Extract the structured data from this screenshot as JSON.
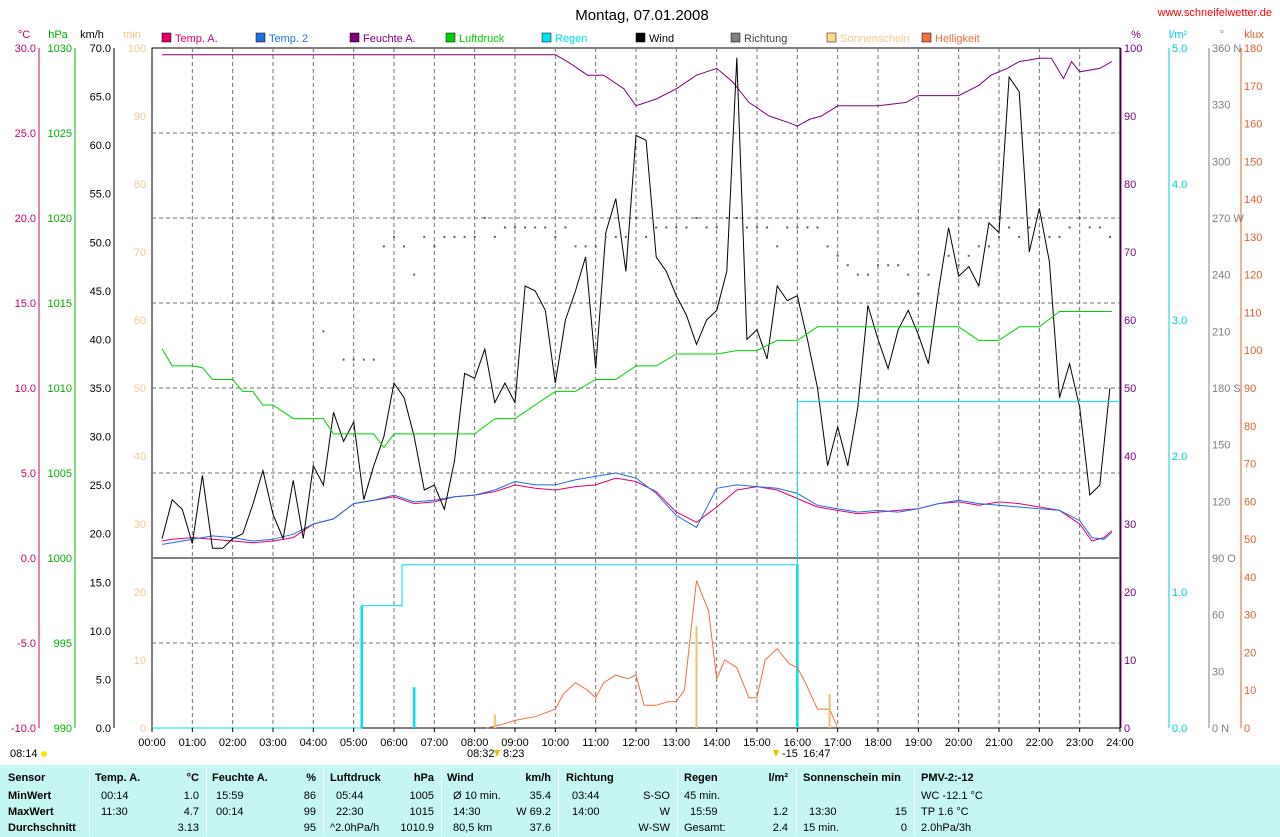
{
  "header": {
    "title": "Montag, 07.01.2008",
    "site": "www.schneifelwetter.de"
  },
  "legend": [
    {
      "label": "Temp. A.",
      "color": "#e0006a"
    },
    {
      "label": "Temp. 2",
      "color": "#1f6fe0"
    },
    {
      "label": "Feuchte A.",
      "color": "#7f0080"
    },
    {
      "label": "Luftdruck",
      "color": "#00d000"
    },
    {
      "label": "Regen",
      "color": "#00e0f0"
    },
    {
      "label": "Wind",
      "color": "#000000"
    },
    {
      "label": "Richtung",
      "color": "#808080"
    },
    {
      "label": "Sonnenschein",
      "color": "#ffd890"
    },
    {
      "label": "Helligkeit",
      "color": "#f07040"
    }
  ],
  "axes": {
    "left": [
      {
        "unit": "°C",
        "color": "#d0006a",
        "ticks": [
          "30.0",
          "25.0",
          "20.0",
          "15.0",
          "10.0",
          "5.0",
          "0.0",
          "-5.0",
          "-10.0"
        ]
      },
      {
        "unit": "hPa",
        "color": "#00b000",
        "ticks": [
          "1030",
          "1025",
          "1020",
          "1015",
          "1010",
          "1005",
          "1000",
          "995",
          "990"
        ]
      },
      {
        "unit": "km/h",
        "color": "#000000",
        "ticks": [
          "70.0",
          "65.0",
          "60.0",
          "55.0",
          "50.0",
          "45.0",
          "40.0",
          "35.0",
          "30.0",
          "25.0",
          "20.0",
          "15.0",
          "10.0",
          "5.0",
          "0.0"
        ]
      },
      {
        "unit": "min",
        "color": "#f0c890",
        "ticks": [
          "100",
          "90",
          "80",
          "70",
          "60",
          "50",
          "40",
          "30",
          "20",
          "10",
          "0"
        ]
      }
    ],
    "right": [
      {
        "unit": "%",
        "color": "#800080",
        "ticks": [
          "100",
          "90",
          "80",
          "70",
          "60",
          "50",
          "40",
          "30",
          "20",
          "10",
          "0"
        ]
      },
      {
        "unit": "l/m²",
        "color": "#00c8d8",
        "ticks": [
          "5.0",
          "4.0",
          "3.0",
          "2.0",
          "1.0",
          "0.0"
        ]
      },
      {
        "unit": "°",
        "color": "#808080",
        "ticks": [
          "360 N",
          "330",
          "300",
          "270 W",
          "240",
          "210",
          "180 S",
          "150",
          "120",
          "90 O",
          "60",
          "30",
          "0 N"
        ]
      },
      {
        "unit": "klux",
        "color": "#e06030",
        "ticks": [
          "180",
          "170",
          "160",
          "150",
          "140",
          "130",
          "120",
          "110",
          "100",
          "90",
          "80",
          "70",
          "60",
          "50",
          "40",
          "30",
          "20",
          "10",
          "0"
        ]
      }
    ],
    "x_ticks": [
      "00:00",
      "01:00",
      "02:00",
      "03:00",
      "04:00",
      "05:00",
      "06:00",
      "07:00",
      "08:00",
      "09:00",
      "10:00",
      "11:00",
      "12:00",
      "13:00",
      "14:00",
      "15:00",
      "16:00",
      "17:00",
      "18:00",
      "19:00",
      "20:00",
      "21:00",
      "22:00",
      "23:00",
      "24:00"
    ]
  },
  "annotations": {
    "bottom_left_time": "08:14",
    "sunrise_label": "08:32",
    "sunrise_label2": "8:23",
    "sunset_label": "-15",
    "sunset_label2": "16:47"
  },
  "chart_data": {
    "type": "line",
    "title": "Montag, 07.01.2008",
    "x_unit": "hour of day",
    "xlim": [
      0,
      24
    ],
    "series": [
      {
        "name": "Feuchte A.",
        "unit": "%",
        "ylim": [
          0,
          100
        ],
        "x": [
          0.25,
          10,
          10.3,
          10.8,
          11.2,
          11.7,
          12,
          12.5,
          13,
          13.5,
          14,
          14.4,
          14.8,
          15.3,
          15.8,
          16,
          16.3,
          16.6,
          17,
          18,
          18.7,
          19,
          20,
          20.5,
          20.8,
          21.2,
          21.5,
          22,
          22.3,
          22.6,
          22.8,
          23,
          23.5,
          23.8
        ],
        "y": [
          99,
          99,
          98,
          96,
          96,
          94,
          91.5,
          92.5,
          94,
          96,
          97,
          95,
          92,
          90,
          89,
          88.5,
          89.5,
          90,
          91.5,
          91.5,
          92,
          93,
          93,
          94.5,
          96,
          97,
          98,
          98.5,
          98.5,
          95.5,
          98,
          96.5,
          97,
          98
        ]
      },
      {
        "name": "Temp. A.",
        "unit": "°C",
        "ylim": [
          -10,
          30
        ],
        "x": [
          0.25,
          0.5,
          1,
          1.5,
          2,
          2.5,
          3,
          3.5,
          4,
          4.5,
          5,
          5.5,
          6,
          6.5,
          7,
          7.5,
          8,
          8.5,
          9,
          9.5,
          10,
          10.5,
          11,
          11.5,
          12,
          12.5,
          13,
          13.5,
          14,
          14.5,
          15,
          15.5,
          16,
          16.5,
          17,
          17.5,
          18,
          18.5,
          19,
          19.5,
          20,
          20.5,
          21,
          21.5,
          22,
          22.5,
          23,
          23.3,
          23.6,
          23.8
        ],
        "y": [
          1,
          1.1,
          1.2,
          1.1,
          1,
          0.9,
          1,
          1.2,
          2,
          2.3,
          3.2,
          3.4,
          3.6,
          3.2,
          3.3,
          3.6,
          3.7,
          3.9,
          4.3,
          4.1,
          4.0,
          4.2,
          4.3,
          4.7,
          4.5,
          3.9,
          2.7,
          2.1,
          3.0,
          4.0,
          4.2,
          4.0,
          3.5,
          3.0,
          2.8,
          2.6,
          2.7,
          2.8,
          2.9,
          3.2,
          3.3,
          3.1,
          3.3,
          3.2,
          3.0,
          2.8,
          2.0,
          1.0,
          1.2,
          1.6
        ]
      },
      {
        "name": "Temp. 2",
        "unit": "°C",
        "ylim": [
          -10,
          30
        ],
        "x": [
          0.25,
          0.5,
          1,
          1.5,
          2,
          2.5,
          3,
          3.5,
          4,
          4.5,
          5,
          5.5,
          6,
          6.5,
          7,
          7.5,
          8,
          8.5,
          9,
          9.5,
          10,
          10.5,
          11,
          11.5,
          12,
          12.5,
          13,
          13.5,
          14,
          14.5,
          15,
          15.5,
          16,
          16.5,
          17,
          17.5,
          18,
          18.5,
          19,
          19.5,
          20,
          20.5,
          21,
          21.5,
          22,
          22.5,
          23,
          23.3,
          23.6,
          23.8
        ],
        "y": [
          0.8,
          0.9,
          1.1,
          1.3,
          1.2,
          1.0,
          1.1,
          1.4,
          2,
          2.3,
          3.2,
          3.4,
          3.7,
          3.3,
          3.4,
          3.6,
          3.7,
          4.0,
          4.5,
          4.3,
          4.3,
          4.6,
          4.8,
          5.0,
          4.7,
          3.8,
          2.5,
          1.8,
          4.1,
          4.3,
          4.2,
          4.1,
          3.8,
          3.1,
          2.9,
          2.7,
          2.8,
          2.7,
          2.9,
          3.2,
          3.4,
          3.2,
          3.1,
          3.0,
          2.9,
          2.8,
          2.2,
          1.2,
          1.1,
          1.5
        ]
      },
      {
        "name": "Wind",
        "unit": "km/h",
        "ylim": [
          0,
          70
        ],
        "x": [
          0.25,
          0.5,
          0.75,
          1,
          1.25,
          1.5,
          1.75,
          2,
          2.25,
          2.5,
          2.75,
          3,
          3.25,
          3.5,
          3.75,
          4,
          4.25,
          4.5,
          4.75,
          5,
          5.25,
          5.5,
          5.75,
          6,
          6.25,
          6.5,
          6.75,
          7,
          7.25,
          7.5,
          7.75,
          8,
          8.25,
          8.5,
          8.75,
          9,
          9.25,
          9.5,
          9.75,
          10,
          10.25,
          10.5,
          10.75,
          11,
          11.25,
          11.5,
          11.75,
          12,
          12.25,
          12.5,
          12.75,
          13,
          13.25,
          13.5,
          13.75,
          14,
          14.25,
          14.5,
          14.75,
          15,
          15.25,
          15.5,
          15.75,
          16,
          16.25,
          16.5,
          16.75,
          17,
          17.25,
          17.5,
          17.75,
          18,
          18.25,
          18.5,
          18.75,
          19,
          19.25,
          19.5,
          19.75,
          20,
          20.25,
          20.5,
          20.75,
          21,
          21.25,
          21.5,
          21.75,
          22,
          22.25,
          22.5,
          22.75,
          23,
          23.25,
          23.5,
          23.75
        ],
        "y": [
          19.5,
          23.5,
          22.5,
          19,
          26,
          18.5,
          18.5,
          19.5,
          20,
          23,
          26.5,
          22,
          19.5,
          25.5,
          19.5,
          27,
          25,
          32.5,
          29.5,
          31.5,
          23.5,
          27,
          30,
          35.5,
          34,
          30,
          24.5,
          25,
          22.5,
          27.5,
          36.5,
          36,
          39,
          33.5,
          35.5,
          33.5,
          45.5,
          45,
          43,
          35.5,
          42,
          45,
          48.5,
          37,
          51,
          54.5,
          47,
          61,
          60.5,
          48.5,
          47,
          44.5,
          42.5,
          39.5,
          42,
          43,
          47,
          69,
          40,
          41,
          38,
          45.5,
          44,
          44.5,
          40,
          35,
          27,
          31,
          27,
          33,
          43.5,
          40,
          37,
          41,
          43,
          40.5,
          37.5,
          45,
          51.5,
          46.5,
          47.5,
          45.5,
          52,
          51,
          67,
          65.5,
          49,
          53.5,
          48,
          34,
          37.5,
          33,
          24,
          25,
          35
        ]
      },
      {
        "name": "Luftdruck",
        "unit": "hPa",
        "ylim": [
          990,
          1030
        ],
        "x": [
          0.25,
          0.5,
          1,
          1.25,
          1.5,
          2,
          2.25,
          2.5,
          2.75,
          3,
          3.5,
          4,
          4.25,
          4.5,
          5,
          5.5,
          5.75,
          6,
          6.5,
          7,
          7.5,
          8,
          8.5,
          9,
          9.5,
          10,
          10.5,
          11,
          11.5,
          12,
          12.5,
          13,
          13.5,
          14,
          14.5,
          15,
          15.5,
          16,
          16.5,
          17,
          17.5,
          18,
          18.5,
          19,
          19.5,
          20,
          20.5,
          21,
          21.5,
          22,
          22.5,
          23,
          23.5,
          23.8
        ],
        "y": [
          1012.3,
          1011.3,
          1011.3,
          1011.2,
          1010.5,
          1010.5,
          1009.8,
          1009.8,
          1009,
          1009,
          1008.2,
          1008.2,
          1008.2,
          1007.3,
          1007.3,
          1007.3,
          1006.5,
          1007.3,
          1007.3,
          1007.3,
          1007.3,
          1007.3,
          1008.2,
          1008.2,
          1009,
          1009.8,
          1009.8,
          1010.5,
          1010.5,
          1011.3,
          1011.3,
          1012,
          1012,
          1012,
          1012.2,
          1012.2,
          1012.8,
          1012.8,
          1013.6,
          1013.6,
          1013.6,
          1013.6,
          1013.6,
          1013.6,
          1013.6,
          1013.6,
          1012.8,
          1012.8,
          1013.6,
          1013.6,
          1014.5,
          1014.5,
          1014.5,
          1014.5
        ]
      },
      {
        "name": "Regen",
        "unit": "l/m²",
        "ylim": [
          0,
          5
        ],
        "x": [
          0,
          4.95,
          5.2,
          5.5,
          5.8,
          6.2,
          6.5,
          15.5,
          15.9,
          16,
          24
        ],
        "y": [
          0,
          0,
          0.9,
          0.9,
          0.9,
          1.2,
          1.2,
          1.2,
          1.2,
          2.4,
          2.4
        ]
      },
      {
        "name": "Helligkeit",
        "unit": "klux",
        "ylim": [
          0,
          180
        ],
        "x": [
          8.3,
          8.7,
          9,
          9.5,
          10,
          10.2,
          10.5,
          10.8,
          11,
          11.2,
          11.5,
          11.8,
          12,
          12.2,
          12.5,
          12.8,
          13,
          13.2,
          13.5,
          13.8,
          14,
          14.2,
          14.5,
          14.8,
          15,
          15.2,
          15.5,
          15.8,
          16,
          16.2,
          16.5,
          16.8,
          17
        ],
        "y": [
          0,
          1,
          2,
          3,
          5,
          9,
          12,
          10,
          8,
          12,
          14,
          13,
          14,
          6,
          6,
          7,
          7,
          10,
          39,
          31,
          13,
          18,
          16,
          8,
          8,
          18,
          21,
          17,
          16,
          12,
          5,
          5,
          0
        ]
      },
      {
        "name": "Richtung",
        "unit": "°",
        "ylim": [
          0,
          360
        ],
        "x": [
          4.25,
          4.75,
          5.0,
          5.25,
          5.5,
          5.75,
          6,
          6.25,
          6.5,
          6.75,
          7,
          7.25,
          7.5,
          7.75,
          8,
          8.25,
          8.5,
          8.75,
          9,
          9.25,
          9.5,
          9.75,
          10,
          10.25,
          10.5,
          10.75,
          11,
          11.25,
          11.5,
          11.75,
          12,
          12.25,
          12.5,
          12.75,
          13,
          13.25,
          13.5,
          13.75,
          14,
          14.25,
          14.5,
          14.75,
          15,
          15.25,
          15.5,
          15.75,
          16,
          16.25,
          16.5,
          16.75,
          17,
          17.25,
          17.5,
          17.75,
          18,
          18.25,
          18.5,
          18.75,
          19,
          19.25,
          19.5,
          19.75,
          20,
          20.25,
          20.5,
          20.75,
          21,
          21.25,
          21.5,
          21.75,
          22,
          22.25,
          22.5,
          22.75,
          23,
          23.25,
          23.5,
          23.75
        ],
        "y": [
          210,
          195,
          195,
          195,
          195,
          255,
          260,
          255,
          240,
          260,
          255,
          260,
          260,
          260,
          260,
          270,
          260,
          265,
          265,
          265,
          265,
          265,
          260,
          265,
          255,
          255,
          255,
          260,
          260,
          260,
          270,
          260,
          265,
          265,
          265,
          265,
          270,
          265,
          265,
          270,
          270,
          265,
          265,
          265,
          255,
          265,
          265,
          265,
          265,
          255,
          250,
          245,
          240,
          240,
          245,
          245,
          245,
          240,
          230,
          240,
          230,
          250,
          245,
          250,
          255,
          255,
          260,
          265,
          260,
          265,
          260,
          260,
          260,
          265,
          270,
          265,
          265,
          260
        ]
      },
      {
        "name": "Sonnenschein",
        "unit": "min",
        "ylim": [
          0,
          100
        ],
        "x": [
          8.5,
          13.5,
          16.8
        ],
        "y": [
          2,
          15,
          5
        ]
      }
    ],
    "grid": true,
    "legend_position": "top"
  },
  "stats": {
    "sensor": {
      "header": "Sensor",
      "rows": [
        "MinWert",
        "MaxWert",
        "Durchschnitt"
      ]
    },
    "temp": {
      "header": "Temp. A.",
      "unit": "°C",
      "rows": [
        [
          "00:14",
          "1.0"
        ],
        [
          "11:30",
          "4.7"
        ],
        [
          "",
          "3.13"
        ]
      ]
    },
    "feuchte": {
      "header": "Feuchte A.",
      "unit": "%",
      "rows": [
        [
          "15:59",
          "86"
        ],
        [
          "00:14",
          "99"
        ],
        [
          "",
          "95"
        ]
      ]
    },
    "druck": {
      "header": "Luftdruck",
      "unit": "hPa",
      "rows": [
        [
          "05:44",
          "1005"
        ],
        [
          "22:30",
          "1015"
        ],
        [
          "^2.0hPa/h",
          "1010.9"
        ]
      ]
    },
    "wind": {
      "header": "Wind",
      "unit": "km/h",
      "rows": [
        [
          "Ø 10 min.",
          "35.4"
        ],
        [
          "14:30",
          "W 69.2"
        ],
        [
          "80,5 km",
          "37.6"
        ]
      ]
    },
    "richtung": {
      "header": "Richtung",
      "rows": [
        [
          "03:44",
          "S-SO"
        ],
        [
          "14:00",
          "W"
        ],
        [
          "",
          "W-SW"
        ]
      ]
    },
    "regen": {
      "header": "Regen",
      "unit": "l/m²",
      "rows": [
        [
          "45 min.",
          ""
        ],
        [
          "15:59",
          "1.2"
        ],
        [
          "Gesamt:",
          "2.4"
        ]
      ]
    },
    "sonne": {
      "header": "Sonnenschein min",
      "rows": [
        [
          "",
          ""
        ],
        [
          "13:30",
          "15"
        ],
        [
          "15 min.",
          "0"
        ]
      ]
    },
    "pmv": {
      "header": "PMV-2:-12",
      "rows": [
        "WC -12.1 °C",
        "TP 1.6 °C",
        "2.0hPa/3h"
      ]
    }
  }
}
